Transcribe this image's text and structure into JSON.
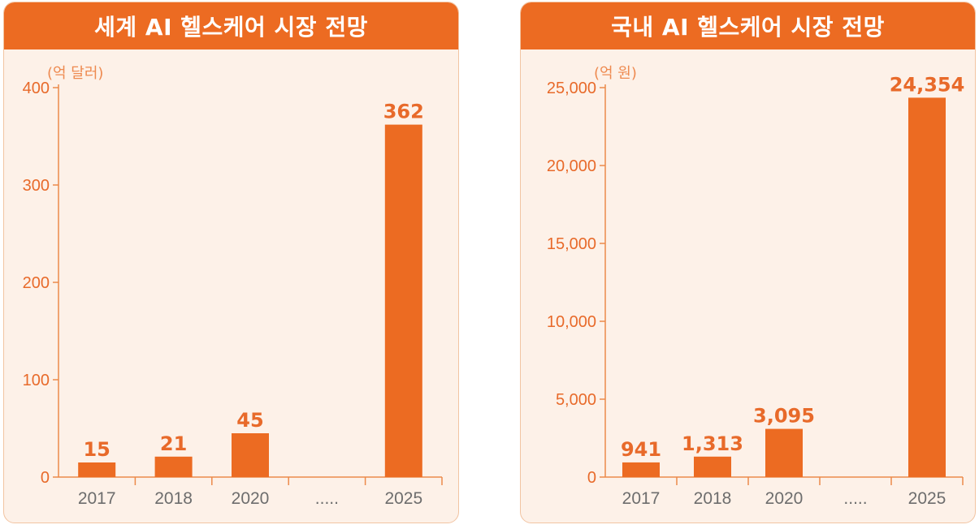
{
  "colors": {
    "accent": "#ec6b22",
    "bar": "#ec6b22",
    "panel_bg": "#fdf1e8",
    "axis": "#ec8a4a",
    "category_text": "#6d6d6d"
  },
  "chart_data": [
    {
      "type": "bar",
      "title": "세계 AI 헬스케어 시장 전망",
      "unit": "(억 달러)",
      "categories": [
        "2017",
        "2018",
        "2020",
        ".....",
        "2025"
      ],
      "values": [
        15,
        21,
        45,
        null,
        362
      ],
      "data_labels": [
        "15",
        "21",
        "45",
        "",
        "362"
      ],
      "ylim": [
        0,
        400
      ],
      "yticks": [
        0,
        100,
        200,
        300,
        400
      ],
      "ytick_labels": [
        "0",
        "100",
        "200",
        "300",
        "400"
      ],
      "xlabel": "",
      "ylabel": "",
      "grid": false
    },
    {
      "type": "bar",
      "title": "국내 AI 헬스케어 시장 전망",
      "unit": "(억 원)",
      "categories": [
        "2017",
        "2018",
        "2020",
        ".....",
        "2025"
      ],
      "values": [
        941,
        1313,
        3095,
        null,
        24354
      ],
      "data_labels": [
        "941",
        "1,313",
        "3,095",
        "",
        "24,354"
      ],
      "ylim": [
        0,
        25000
      ],
      "yticks": [
        0,
        5000,
        10000,
        15000,
        20000,
        25000
      ],
      "ytick_labels": [
        "0",
        "5,000",
        "10,000",
        "15,000",
        "20,000",
        "25,000"
      ],
      "xlabel": "",
      "ylabel": "",
      "grid": false
    }
  ]
}
